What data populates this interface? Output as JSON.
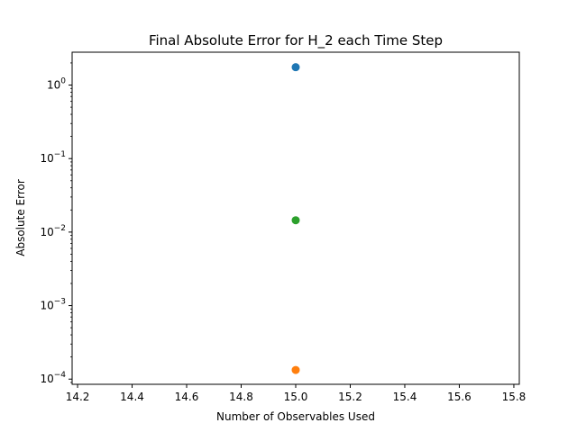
{
  "chart_data": {
    "type": "scatter",
    "title": "Final Absolute Error for H_2 each Time Step",
    "xlabel": "Number of Observables Used",
    "ylabel": "Absolute Error",
    "xlim": [
      14.18,
      15.82
    ],
    "ylim": [
      8.5e-05,
      2.8
    ],
    "yscale": "log",
    "grid": false,
    "x_ticks": [
      {
        "value": 14.2,
        "label": "14.2"
      },
      {
        "value": 14.4,
        "label": "14.4"
      },
      {
        "value": 14.6,
        "label": "14.6"
      },
      {
        "value": 14.8,
        "label": "14.8"
      },
      {
        "value": 15.0,
        "label": "15.0"
      },
      {
        "value": 15.2,
        "label": "15.2"
      },
      {
        "value": 15.4,
        "label": "15.4"
      },
      {
        "value": 15.6,
        "label": "15.6"
      },
      {
        "value": 15.8,
        "label": "15.8"
      }
    ],
    "y_ticks": [
      {
        "exp": 0,
        "base": "10",
        "sup": "0"
      },
      {
        "exp": -1,
        "base": "10",
        "sup": "−1"
      },
      {
        "exp": -2,
        "base": "10",
        "sup": "−2"
      },
      {
        "exp": -3,
        "base": "10",
        "sup": "−3"
      },
      {
        "exp": -4,
        "base": "10",
        "sup": "−4"
      }
    ],
    "series": [
      {
        "color": "#1f77b4",
        "points": [
          {
            "x": 15.0,
            "y": 1.75
          }
        ]
      },
      {
        "color": "#ff7f0e",
        "points": [
          {
            "x": 15.0,
            "y": 0.000133
          }
        ]
      },
      {
        "color": "#2ca02c",
        "points": [
          {
            "x": 15.0,
            "y": 0.0145
          }
        ]
      }
    ]
  }
}
